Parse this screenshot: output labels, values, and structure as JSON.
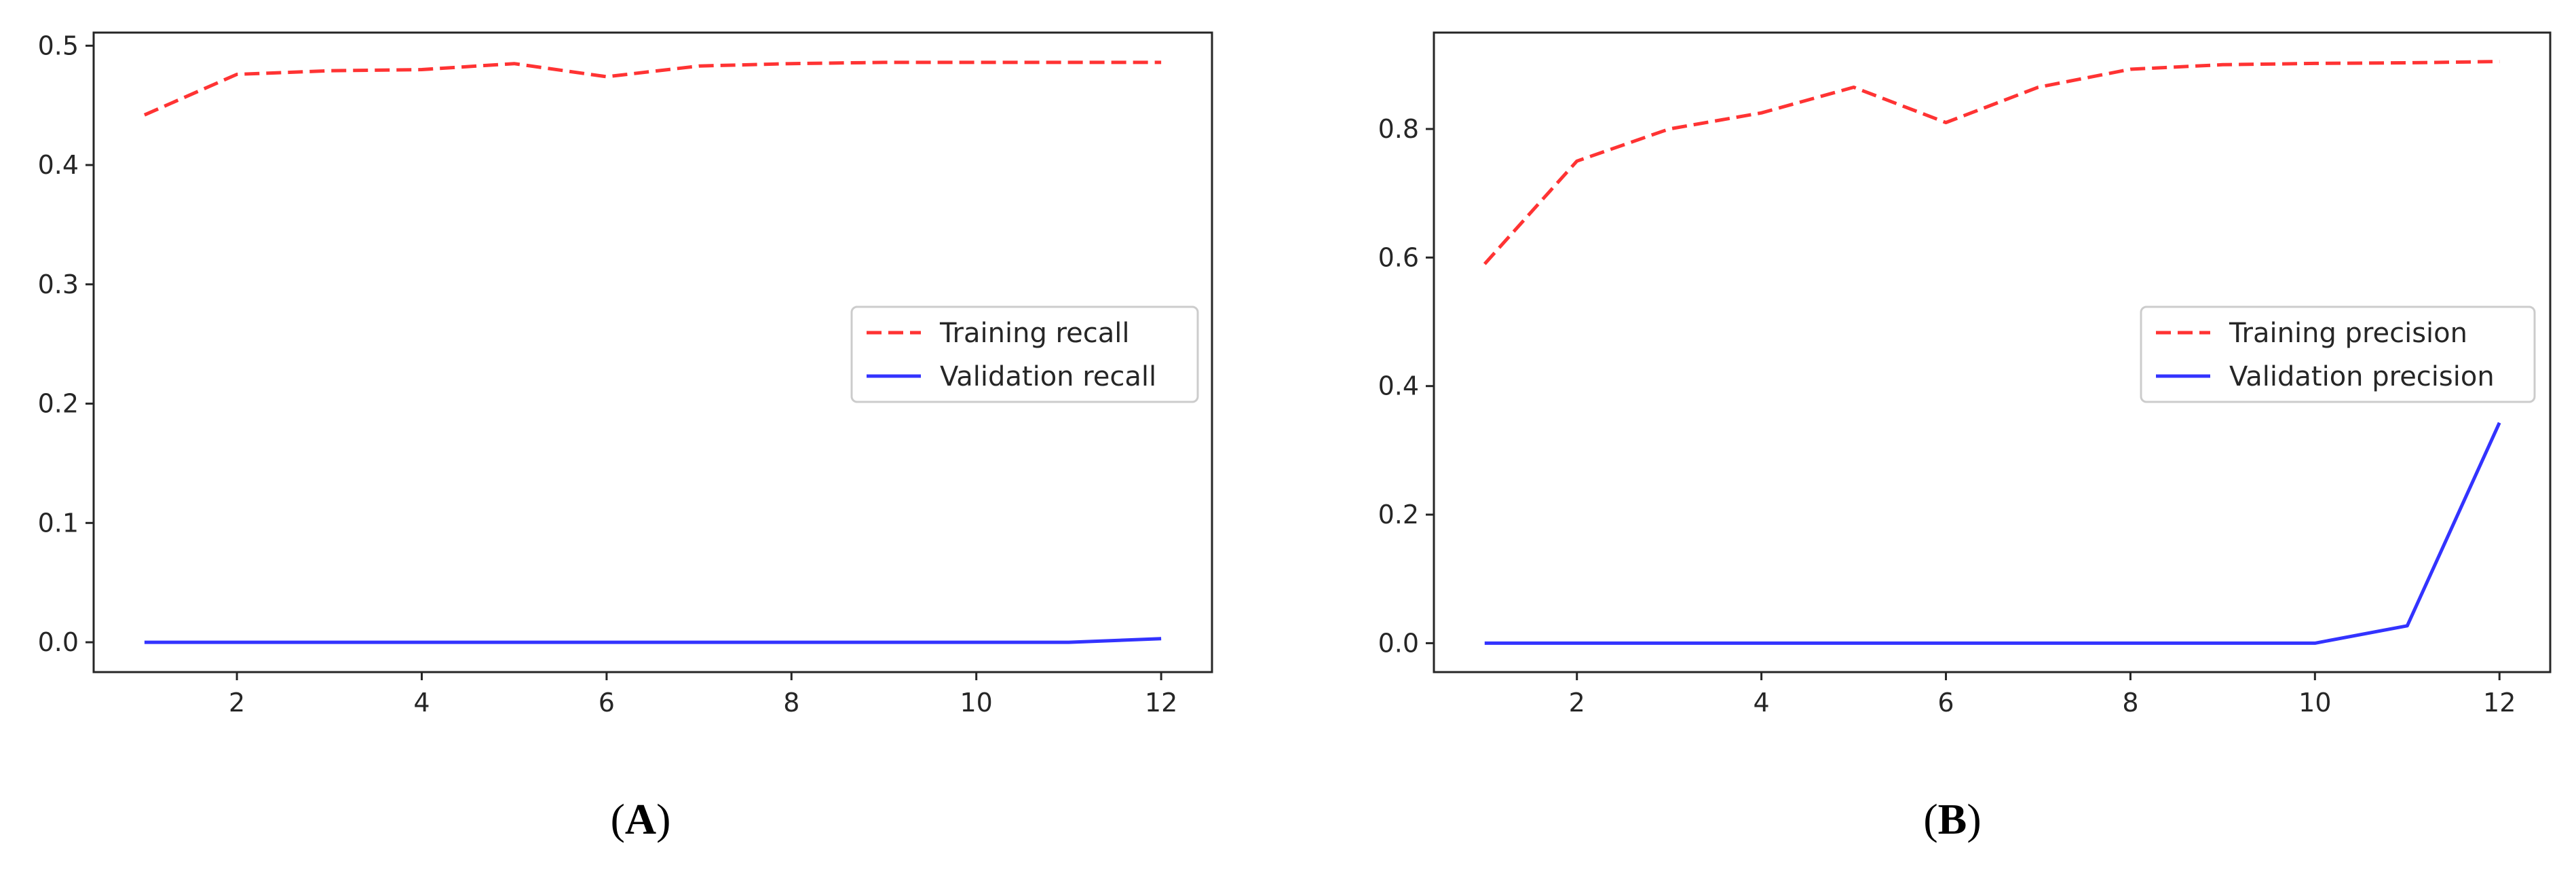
{
  "chart_data": [
    {
      "type": "line",
      "panel_label": "A",
      "x": [
        1,
        2,
        3,
        4,
        5,
        6,
        7,
        8,
        9,
        10,
        11,
        12
      ],
      "series": [
        {
          "name": "Training recall",
          "color": "#ff3333",
          "style": "dashed",
          "values": [
            0.442,
            0.476,
            0.479,
            0.48,
            0.485,
            0.474,
            0.483,
            0.485,
            0.486,
            0.486,
            0.486,
            0.486
          ]
        },
        {
          "name": "Validation recall",
          "color": "#3333ff",
          "style": "solid",
          "values": [
            0.0,
            0.0,
            0.0,
            0.0,
            0.0,
            0.0,
            0.0,
            0.0,
            0.0,
            0.0,
            0.0,
            0.003
          ]
        }
      ],
      "xlim": [
        0.45,
        12.55
      ],
      "ylim": [
        -0.025,
        0.511
      ],
      "xticks": [
        2,
        4,
        6,
        8,
        10,
        12
      ],
      "xtick_labels": [
        "2",
        "4",
        "6",
        "8",
        "10",
        "12"
      ],
      "yticks": [
        0.0,
        0.1,
        0.2,
        0.3,
        0.4,
        0.5
      ],
      "ytick_labels": [
        "0.0",
        "0.1",
        "0.2",
        "0.3",
        "0.4",
        "0.5"
      ],
      "legend_position": "center-right",
      "title": "",
      "xlabel": "",
      "ylabel": "",
      "grid": false
    },
    {
      "type": "line",
      "panel_label": "B",
      "x": [
        1,
        2,
        3,
        4,
        5,
        6,
        7,
        8,
        9,
        10,
        11,
        12
      ],
      "series": [
        {
          "name": "Training precision",
          "color": "#ff3333",
          "style": "dashed",
          "values": [
            0.59,
            0.75,
            0.8,
            0.825,
            0.865,
            0.81,
            0.865,
            0.893,
            0.9,
            0.902,
            0.903,
            0.905
          ]
        },
        {
          "name": "Validation precision",
          "color": "#3333ff",
          "style": "solid",
          "values": [
            0.0,
            0.0,
            0.0,
            0.0,
            0.0,
            0.0,
            0.0,
            0.0,
            0.0,
            0.0,
            0.027,
            0.343
          ]
        }
      ],
      "xlim": [
        0.45,
        12.55
      ],
      "ylim": [
        -0.045,
        0.95
      ],
      "xticks": [
        2,
        4,
        6,
        8,
        10,
        12
      ],
      "xtick_labels": [
        "2",
        "4",
        "6",
        "8",
        "10",
        "12"
      ],
      "yticks": [
        0.0,
        0.2,
        0.4,
        0.6,
        0.8
      ],
      "ytick_labels": [
        "0.0",
        "0.2",
        "0.4",
        "0.6",
        "0.8"
      ],
      "legend_position": "center-right",
      "title": "",
      "xlabel": "",
      "ylabel": "",
      "grid": false
    }
  ],
  "captions": {
    "left": {
      "open": "(",
      "label": "A",
      "close": ")"
    },
    "right": {
      "open": "(",
      "label": "B",
      "close": ")"
    }
  }
}
